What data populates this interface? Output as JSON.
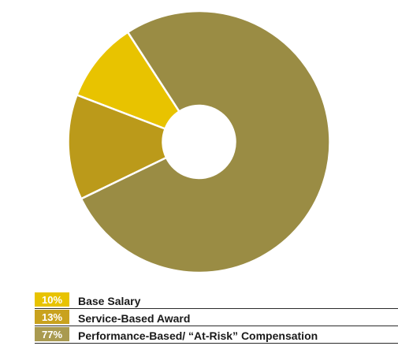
{
  "chart_data": {
    "type": "pie",
    "title": "",
    "donut": true,
    "grid": false,
    "legend_position": "bottom",
    "slices": [
      {
        "label": "Base Salary",
        "value": 10,
        "value_label": "10%",
        "color": "#e8c300"
      },
      {
        "label": "Service-Based Award",
        "value": 13,
        "value_label": "13%",
        "color": "#bb9a1a"
      },
      {
        "label": "Performance-Based/ “At-Risk” Compensation",
        "value": 77,
        "value_label": "77%",
        "color": "#9a8c44"
      }
    ],
    "legend_swatch_colors": [
      "#e8c300",
      "#c9a21e",
      "#a99a50"
    ]
  }
}
